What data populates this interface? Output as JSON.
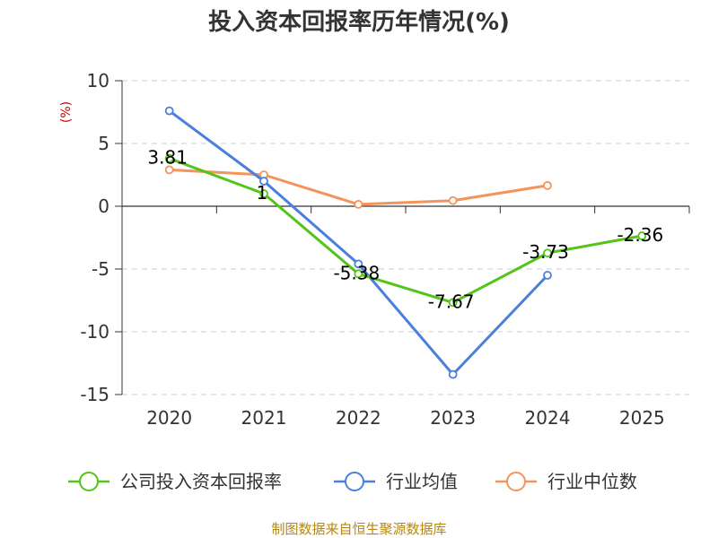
{
  "chart_data": {
    "type": "line",
    "title": "投入资本回报率历年情况(%)",
    "unit_label": "(%)",
    "categories": [
      "2020",
      "2021",
      "2022",
      "2023",
      "2024",
      "2025"
    ],
    "ylim": [
      -15,
      10
    ],
    "yticks": [
      10,
      5,
      0,
      -5,
      -10,
      -15
    ],
    "grid": true,
    "legend_position": "bottom",
    "series": [
      {
        "name": "公司投入资本回报率",
        "color": "#52c41a",
        "values": [
          3.81,
          1,
          -5.38,
          -7.67,
          -3.73,
          -2.36
        ],
        "labels": [
          "3.81",
          "1",
          "-5.38",
          "-7.67",
          "-3.73",
          "-2.36"
        ]
      },
      {
        "name": "行业均值",
        "color": "#4a7fdc",
        "values": [
          7.6,
          2.0,
          -4.6,
          -13.4,
          -5.5,
          null
        ]
      },
      {
        "name": "行业中位数",
        "color": "#f4935a",
        "values": [
          2.9,
          2.5,
          0.15,
          0.45,
          1.65,
          null
        ]
      }
    ],
    "source": "制图数据来自恒生聚源数据库"
  }
}
